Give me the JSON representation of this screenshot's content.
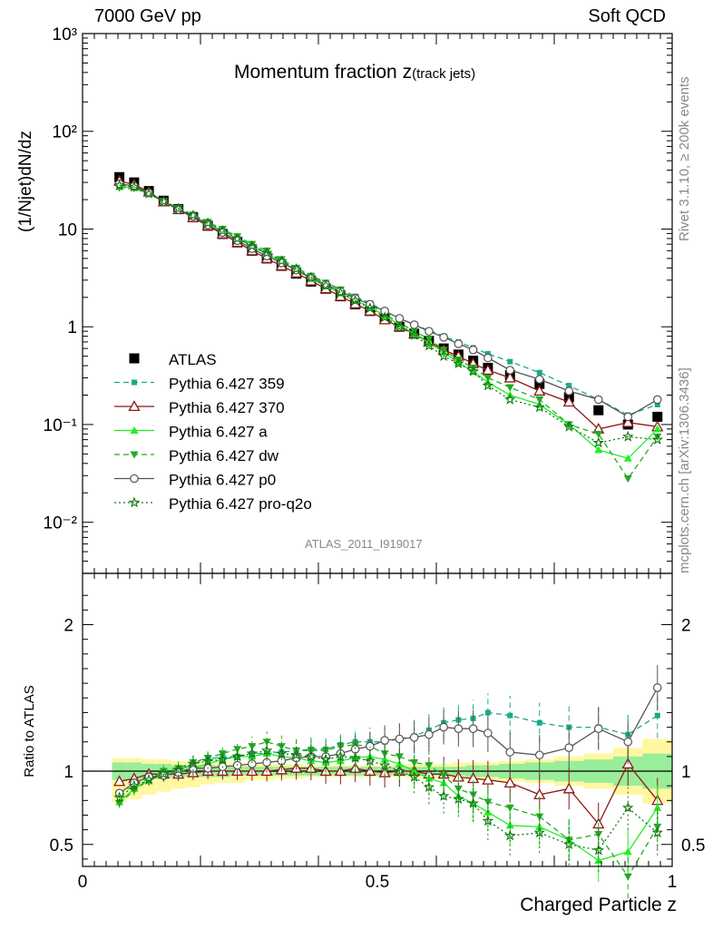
{
  "header": {
    "left": "7000 GeV pp",
    "right": "Soft QCD"
  },
  "side_labels": {
    "rivet": "Rivet 3.1.10, ≥ 200k events",
    "mcplots": "mcplots.cern.ch [arXiv:1306.3436]"
  },
  "chart_data": [
    {
      "type": "scatter",
      "title": "Momentum fraction z",
      "title_sub": "(track jets)",
      "analysis_label": "ATLAS_2011_I919017",
      "ylabel": "(1/Njet)dN/dz",
      "yscale": "log",
      "ylim": [
        0.003,
        1000
      ],
      "xlim": [
        0,
        1
      ],
      "y_ticks": [
        {
          "v": 0.01,
          "label": "10⁻²"
        },
        {
          "v": 0.1,
          "label": "10⁻¹"
        },
        {
          "v": 1,
          "label": "1"
        },
        {
          "v": 10,
          "label": "10"
        },
        {
          "v": 100,
          "label": "10²"
        },
        {
          "v": 1000,
          "label": "10³"
        }
      ],
      "x": [
        0.0625,
        0.0875,
        0.1125,
        0.1375,
        0.1625,
        0.1875,
        0.2125,
        0.2375,
        0.2625,
        0.2875,
        0.3125,
        0.3375,
        0.3625,
        0.3875,
        0.4125,
        0.4375,
        0.4625,
        0.4875,
        0.5125,
        0.5375,
        0.5625,
        0.5875,
        0.6125,
        0.6375,
        0.6625,
        0.6875,
        0.725,
        0.775,
        0.825,
        0.875,
        0.925,
        0.975
      ],
      "series": [
        {
          "name": "ATLAS",
          "color": "#000000",
          "marker": "square",
          "line": "none",
          "values": [
            34,
            30,
            24.5,
            19.5,
            16,
            13.2,
            10.8,
            8.9,
            7.3,
            6.0,
            5.0,
            4.2,
            3.5,
            2.9,
            2.45,
            2.05,
            1.7,
            1.45,
            1.2,
            1.0,
            0.85,
            0.72,
            0.6,
            0.52,
            0.45,
            0.38,
            0.32,
            0.26,
            0.19,
            0.14,
            0.1,
            0.12
          ]
        },
        {
          "name": "Pythia 6.427 359",
          "color": "#1aaa88",
          "marker": "square-small",
          "line": "dashed",
          "values": [
            29,
            27.5,
            23.5,
            19.3,
            16.3,
            14.0,
            11.7,
            9.8,
            8.1,
            6.8,
            5.7,
            4.8,
            4.0,
            3.35,
            2.85,
            2.42,
            2.05,
            1.75,
            1.45,
            1.22,
            1.05,
            0.92,
            0.8,
            0.7,
            0.61,
            0.53,
            0.44,
            0.34,
            0.25,
            0.18,
            0.125,
            0.16
          ]
        },
        {
          "name": "Pythia 6.427 370",
          "color": "#8b1a1a",
          "marker": "triangle-open",
          "line": "solid",
          "values": [
            31,
            28.5,
            24.0,
            19.0,
            15.8,
            13.1,
            10.8,
            8.9,
            7.3,
            6.0,
            5.0,
            4.2,
            3.55,
            2.95,
            2.45,
            2.05,
            1.72,
            1.45,
            1.18,
            1.0,
            0.85,
            0.7,
            0.58,
            0.5,
            0.42,
            0.36,
            0.3,
            0.22,
            0.17,
            0.09,
            0.105,
            0.095
          ]
        },
        {
          "name": "Pythia 6.427 a",
          "color": "#22ee22",
          "marker": "triangle",
          "line": "solid",
          "values": [
            27,
            26.5,
            23.0,
            19.0,
            16.0,
            13.5,
            11.4,
            9.6,
            8.0,
            6.6,
            5.6,
            4.6,
            3.8,
            3.1,
            2.6,
            2.2,
            1.85,
            1.6,
            1.3,
            1.05,
            0.85,
            0.68,
            0.55,
            0.43,
            0.35,
            0.27,
            0.2,
            0.16,
            0.1,
            0.055,
            0.045,
            0.09
          ]
        },
        {
          "name": "Pythia 6.427 dw",
          "color": "#22aa22",
          "marker": "triangle-down",
          "line": "dashed",
          "values": [
            26.5,
            26.0,
            23.0,
            19.4,
            16.4,
            14.0,
            11.8,
            10.0,
            8.4,
            7.0,
            6.0,
            4.9,
            4.0,
            3.3,
            2.8,
            2.4,
            2.0,
            1.7,
            1.35,
            1.1,
            0.9,
            0.75,
            0.58,
            0.46,
            0.38,
            0.3,
            0.24,
            0.18,
            0.1,
            0.08,
            0.028,
            0.075
          ]
        },
        {
          "name": "Pythia 6.427 p0",
          "color": "#555555",
          "marker": "circle-open",
          "line": "solid",
          "values": [
            29,
            27.5,
            23.5,
            19.0,
            15.8,
            13.5,
            11.0,
            9.2,
            7.6,
            6.3,
            5.3,
            4.5,
            3.8,
            3.2,
            2.7,
            2.3,
            1.95,
            1.7,
            1.45,
            1.22,
            1.05,
            0.9,
            0.78,
            0.67,
            0.58,
            0.48,
            0.36,
            0.29,
            0.22,
            0.18,
            0.12,
            0.18
          ]
        },
        {
          "name": "Pythia 6.427 pro-q2o",
          "color": "#117711",
          "marker": "star",
          "line": "dotted",
          "values": [
            28,
            27.0,
            23.0,
            19.2,
            16.2,
            13.8,
            11.5,
            9.6,
            8.0,
            6.7,
            5.7,
            4.7,
            3.9,
            3.2,
            2.65,
            2.25,
            1.85,
            1.55,
            1.25,
            1.0,
            0.82,
            0.64,
            0.5,
            0.42,
            0.35,
            0.25,
            0.18,
            0.15,
            0.095,
            0.065,
            0.075,
            0.07
          ]
        }
      ]
    },
    {
      "type": "scatter",
      "title": "",
      "ylabel": "Ratio to ATLAS",
      "xlabel": "Charged Particle z",
      "ylim": [
        0.35,
        2.35
      ],
      "xlim": [
        0,
        1
      ],
      "y_ticks": [
        {
          "v": 0.5,
          "label": "0.5"
        },
        {
          "v": 1,
          "label": "1"
        },
        {
          "v": 2,
          "label": "2"
        }
      ],
      "x_ticks": [
        {
          "v": 0,
          "label": "0"
        },
        {
          "v": 0.5,
          "label": "0.5"
        },
        {
          "v": 1,
          "label": "1"
        }
      ],
      "bands": {
        "yellow_color": "#fff8a0",
        "green_color": "#99ee99",
        "yellow_halfwidth": [
          0.09,
          0.09,
          0.08,
          0.08,
          0.07,
          0.07,
          0.06,
          0.06,
          0.06,
          0.05,
          0.05,
          0.05,
          0.05,
          0.04,
          0.04,
          0.04,
          0.04,
          0.04,
          0.04,
          0.04,
          0.05,
          0.05,
          0.05,
          0.06,
          0.06,
          0.06,
          0.07,
          0.08,
          0.1,
          0.12,
          0.16,
          0.22
        ],
        "yellow_offset": [
          -0.12,
          -0.1,
          -0.08,
          -0.06,
          -0.05,
          -0.04,
          -0.03,
          -0.02,
          -0.02,
          -0.01,
          -0.01,
          0,
          0,
          0,
          0,
          0,
          0,
          0,
          0,
          0,
          0,
          0,
          0,
          0,
          0,
          0,
          0,
          0,
          0,
          0,
          0,
          0
        ],
        "green_halfwidth": [
          0.06,
          0.06,
          0.05,
          0.05,
          0.04,
          0.04,
          0.04,
          0.04,
          0.03,
          0.03,
          0.03,
          0.03,
          0.03,
          0.03,
          0.03,
          0.03,
          0.03,
          0.03,
          0.03,
          0.03,
          0.03,
          0.03,
          0.03,
          0.03,
          0.04,
          0.04,
          0.05,
          0.06,
          0.07,
          0.08,
          0.1,
          0.12
        ]
      },
      "series": [
        {
          "name": "Pythia 6.427 359",
          "color": "#1aaa88",
          "line": "dashed",
          "values": [
            0.85,
            0.9,
            0.95,
            0.98,
            1.0,
            1.05,
            1.08,
            1.1,
            1.1,
            1.12,
            1.12,
            1.13,
            1.14,
            1.15,
            1.15,
            1.18,
            1.2,
            1.2,
            1.2,
            1.22,
            1.24,
            1.28,
            1.33,
            1.35,
            1.36,
            1.4,
            1.38,
            1.33,
            1.3,
            1.3,
            1.25,
            1.38
          ]
        },
        {
          "name": "Pythia 6.427 370",
          "color": "#8b1a1a",
          "line": "solid",
          "values": [
            0.93,
            0.95,
            0.98,
            0.98,
            0.98,
            0.99,
            1.0,
            1.0,
            1.0,
            1.0,
            1.0,
            1.01,
            1.02,
            1.02,
            1.0,
            1.0,
            1.02,
            1.0,
            0.99,
            1.0,
            1.0,
            0.98,
            0.98,
            0.96,
            0.95,
            0.94,
            0.92,
            0.84,
            0.88,
            0.64,
            1.05,
            0.8
          ]
        },
        {
          "name": "Pythia 6.427 a",
          "color": "#22ee22",
          "line": "solid",
          "values": [
            0.79,
            0.88,
            0.94,
            0.97,
            1.0,
            1.02,
            1.05,
            1.08,
            1.1,
            1.1,
            1.12,
            1.1,
            1.09,
            1.07,
            1.06,
            1.07,
            1.09,
            1.1,
            1.08,
            1.05,
            1.0,
            0.95,
            0.92,
            0.83,
            0.78,
            0.72,
            0.63,
            0.62,
            0.53,
            0.39,
            0.45,
            0.75
          ]
        },
        {
          "name": "Pythia 6.427 dw",
          "color": "#22aa22",
          "line": "dashed",
          "values": [
            0.78,
            0.87,
            0.94,
            1.0,
            1.02,
            1.06,
            1.09,
            1.12,
            1.15,
            1.17,
            1.2,
            1.17,
            1.14,
            1.14,
            1.14,
            1.17,
            1.18,
            1.17,
            1.12,
            1.1,
            1.06,
            1.04,
            0.97,
            0.88,
            0.84,
            0.79,
            0.75,
            0.69,
            0.53,
            0.57,
            0.28,
            0.62
          ]
        },
        {
          "name": "Pythia 6.427 p0",
          "color": "#555555",
          "line": "solid",
          "values": [
            0.85,
            0.92,
            0.96,
            0.97,
            0.99,
            1.02,
            1.02,
            1.03,
            1.04,
            1.05,
            1.06,
            1.07,
            1.09,
            1.1,
            1.1,
            1.12,
            1.15,
            1.17,
            1.21,
            1.22,
            1.23,
            1.25,
            1.3,
            1.29,
            1.29,
            1.26,
            1.13,
            1.11,
            1.16,
            1.29,
            1.2,
            1.57
          ]
        },
        {
          "name": "Pythia 6.427 pro-q2o",
          "color": "#117711",
          "line": "dotted",
          "values": [
            0.82,
            0.9,
            0.94,
            0.98,
            1.01,
            1.05,
            1.07,
            1.08,
            1.1,
            1.12,
            1.14,
            1.12,
            1.11,
            1.1,
            1.08,
            1.1,
            1.09,
            1.07,
            1.04,
            1.0,
            0.96,
            0.89,
            0.83,
            0.81,
            0.78,
            0.66,
            0.56,
            0.58,
            0.5,
            0.46,
            0.75,
            0.58
          ]
        }
      ]
    }
  ]
}
